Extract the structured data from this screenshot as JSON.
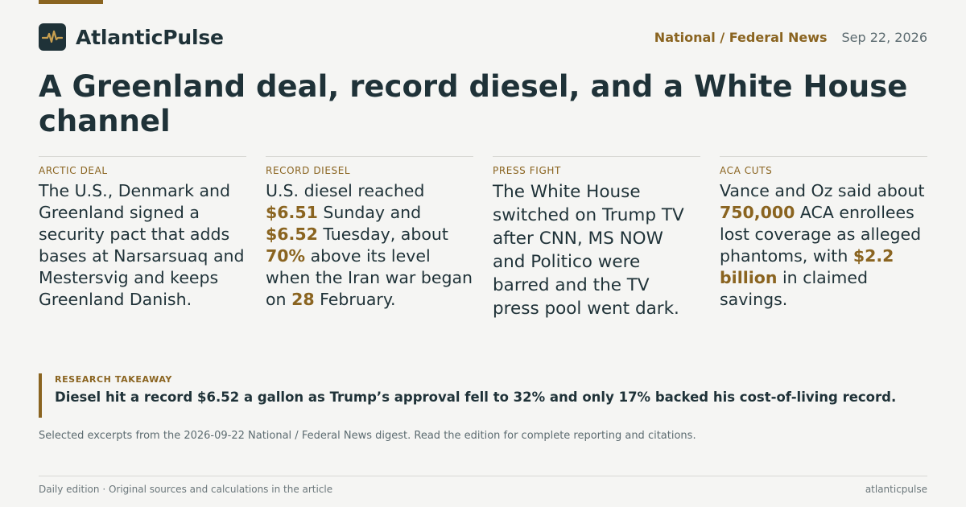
{
  "brand": {
    "name": "AtlanticPulse",
    "icon": "pulse-icon",
    "accent_color": "#8a6420",
    "dark_color": "#1f3238"
  },
  "header": {
    "section": "National / Federal News",
    "date": "Sep 22, 2026"
  },
  "headline": "A Greenland deal, record diesel, and a White House channel",
  "columns": [
    {
      "label": "ARCTIC DEAL",
      "segments": [
        {
          "text": "The U.S., Denmark and Greenland signed a security pact that adds bases at Narsarsuaq and Mestersvig and keeps Greenland Danish."
        }
      ]
    },
    {
      "label": "RECORD DIESEL",
      "segments": [
        {
          "text": "U.S. diesel reached "
        },
        {
          "text": "$6.51",
          "highlight": true
        },
        {
          "text": " Sunday and "
        },
        {
          "text": "$6.52",
          "highlight": true
        },
        {
          "text": " Tuesday, about "
        },
        {
          "text": "70%",
          "highlight": true
        },
        {
          "text": " above its level when the Iran war began on "
        },
        {
          "text": "28",
          "highlight": true
        },
        {
          "text": " February."
        }
      ]
    },
    {
      "label": "PRESS FIGHT",
      "segments": [
        {
          "text": "The White House switched on Trump TV after CNN, MS NOW and Politico were barred and the TV press pool went dark."
        }
      ]
    },
    {
      "label": "ACA CUTS",
      "segments": [
        {
          "text": "Vance and Oz said about "
        },
        {
          "text": "750,000",
          "highlight": true
        },
        {
          "text": " ACA enrollees lost coverage as alleged phantoms, with "
        },
        {
          "text": "$2.2 billion",
          "highlight": true
        },
        {
          "text": " in claimed savings."
        }
      ]
    }
  ],
  "takeaway": {
    "label": "RESEARCH TAKEAWAY",
    "text": "Diesel hit a record $6.52 a gallon as Trump’s approval fell to 32% and only 17% backed his cost-of-living record."
  },
  "note": "Selected excerpts from the 2026-09-22 National / Federal News digest. Read the edition for complete reporting and citations.",
  "footer": {
    "left": "Daily edition · Original sources and calculations in the article",
    "right": "atlanticpulse"
  }
}
